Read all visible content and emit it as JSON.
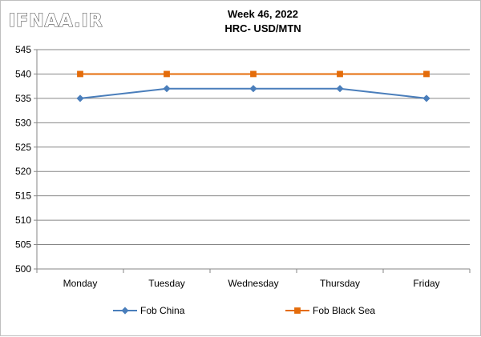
{
  "watermark": "IFNAA.IR",
  "chart_data": {
    "type": "line",
    "title": "Week 46, 2022",
    "subtitle": "HRC- USD/MTN",
    "categories": [
      "Monday",
      "Tuesday",
      "Wednesday",
      "Thursday",
      "Friday"
    ],
    "series": [
      {
        "name": "Fob China",
        "values": [
          535,
          537,
          537,
          537,
          535
        ],
        "color": "#4a7ebb",
        "marker": "diamond"
      },
      {
        "name": "Fob Black Sea",
        "values": [
          540,
          540,
          540,
          540,
          540
        ],
        "color": "#e46c0a",
        "marker": "square"
      }
    ],
    "ylim": [
      500,
      545
    ],
    "yticks": [
      500,
      505,
      510,
      515,
      520,
      525,
      530,
      535,
      540,
      545
    ],
    "grid": true,
    "legend": "bottom"
  }
}
